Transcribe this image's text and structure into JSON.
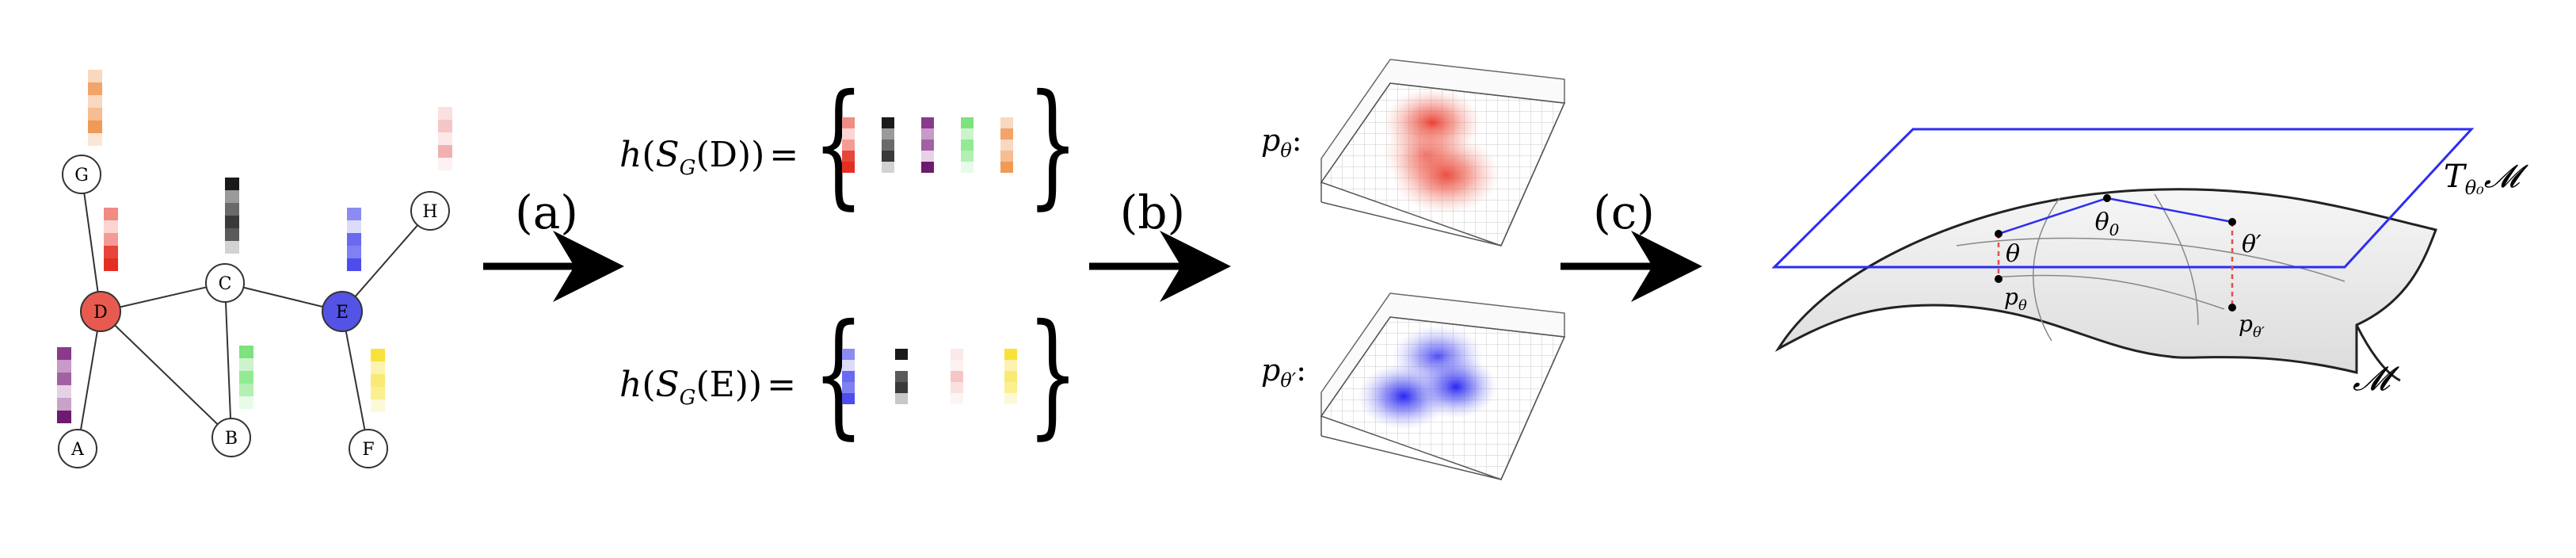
{
  "graph": {
    "nodes": [
      {
        "id": "G",
        "label": "G"
      },
      {
        "id": "D",
        "label": "D"
      },
      {
        "id": "C",
        "label": "C"
      },
      {
        "id": "E",
        "label": "E"
      },
      {
        "id": "H",
        "label": "H"
      },
      {
        "id": "A",
        "label": "A"
      },
      {
        "id": "B",
        "label": "B"
      },
      {
        "id": "F",
        "label": "F"
      }
    ]
  },
  "steps": {
    "a": "(a)",
    "b": "(b)",
    "c": "(c)"
  },
  "sets": {
    "d": {
      "func": "h",
      "set_symbol": "S",
      "set_subscript": "G",
      "arg": "(D)"
    },
    "e": {
      "func": "h",
      "set_symbol": "S",
      "set_subscript": "G",
      "arg": "(E)"
    },
    "equals": "=",
    "brace_left": "{",
    "brace_right": "}"
  },
  "distributions": {
    "p_theta": {
      "base": "p",
      "sub": "θ",
      "suffix": ":"
    },
    "p_theta_prime": {
      "base": "p",
      "sub": "θ′",
      "suffix": ":"
    },
    "colors": {
      "red": "#e84d3d",
      "blue": "#3a3ae6"
    }
  },
  "manifold": {
    "tangent_label": {
      "base": "T",
      "sub": "θ₀",
      "space": "𝓜"
    },
    "manifold_label": "𝓜",
    "theta0": {
      "base": "θ",
      "sub": "0"
    },
    "theta": "θ",
    "theta_prime": "θ′",
    "p_theta": {
      "base": "p",
      "sub": "θ"
    },
    "p_theta_prime": {
      "base": "p",
      "sub": "θ′"
    },
    "colors": {
      "plane": "#2d2df0",
      "dashed": "#e0504a",
      "surface": "#ececec"
    }
  },
  "colors": {
    "node_D": "#e85a4f",
    "node_E": "#5353e6"
  }
}
